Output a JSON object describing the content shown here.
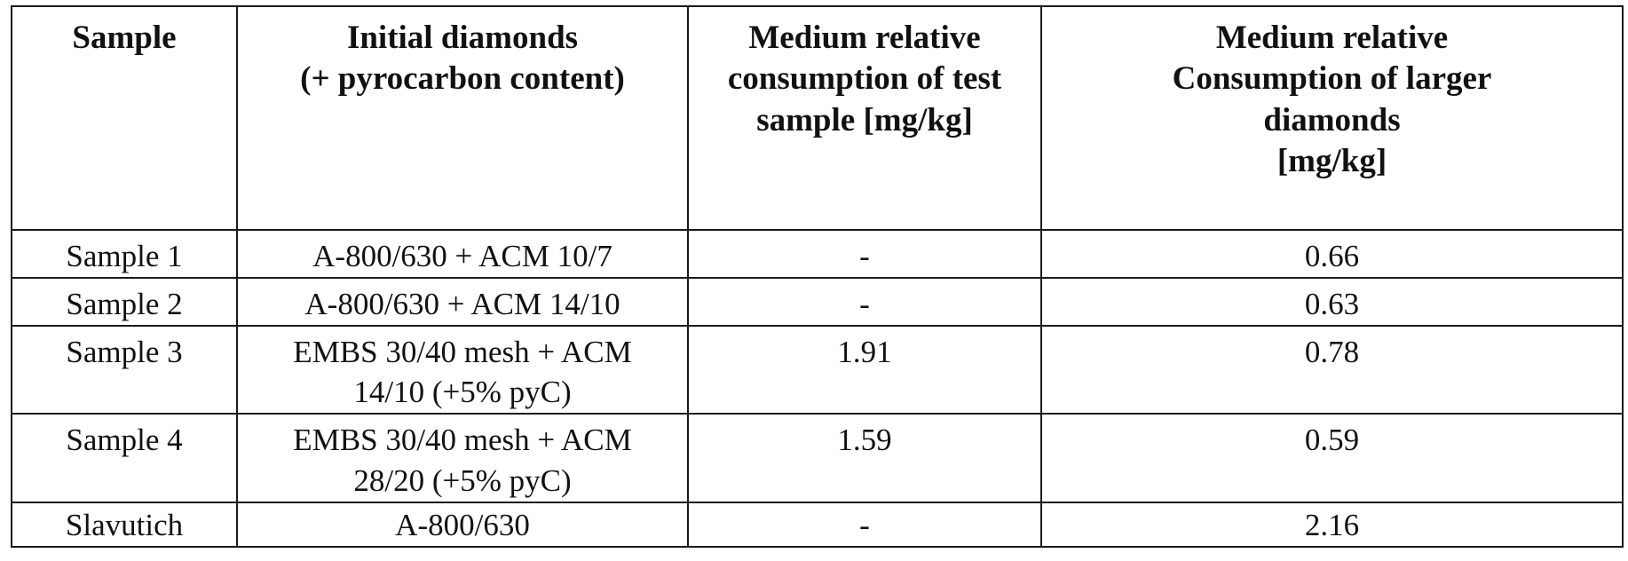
{
  "table": {
    "headers": [
      {
        "lines": [
          "Sample"
        ]
      },
      {
        "lines": [
          "Initial diamonds",
          "(+ pyrocarbon content)"
        ]
      },
      {
        "lines": [
          "Medium relative",
          "consumption of test",
          "sample [mg/kg]"
        ]
      },
      {
        "lines": [
          "Medium relative",
          "Consumption of larger",
          "diamonds",
          "[mg/kg]"
        ]
      }
    ],
    "rows": [
      {
        "sample": "Sample 1",
        "initial": [
          "A-800/630 + ACM 10/7"
        ],
        "test": "-",
        "larger": "0.66"
      },
      {
        "sample": "Sample 2",
        "initial": [
          "A-800/630 + ACM 14/10"
        ],
        "test": "-",
        "larger": "0.63"
      },
      {
        "sample": "Sample 3",
        "initial": [
          "EMBS 30/40 mesh + ACM",
          "14/10 (+5% pyC)"
        ],
        "test": "1.91",
        "larger": "0.78"
      },
      {
        "sample": "Sample 4",
        "initial": [
          "EMBS 30/40 mesh + ACM",
          "28/20 (+5% pyC)"
        ],
        "test": "1.59",
        "larger": "0.59"
      },
      {
        "sample": "Slavutich",
        "initial": [
          "A-800/630"
        ],
        "test": "-",
        "larger": "2.16"
      }
    ]
  }
}
